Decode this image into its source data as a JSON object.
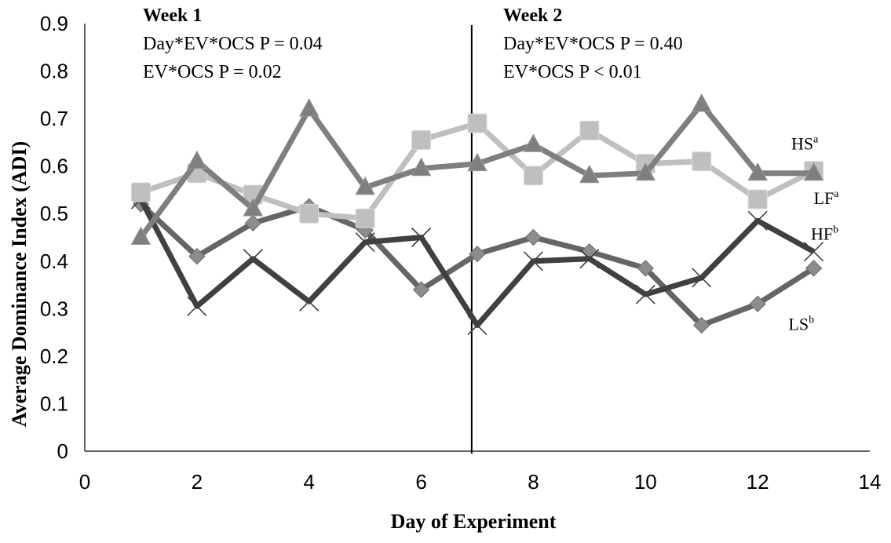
{
  "chart_data": {
    "type": "line",
    "title": "",
    "xlabel": "Day of Experiment",
    "ylabel": "Average Dominance Index (ADI)",
    "xlim": [
      0,
      14
    ],
    "ylim": [
      0,
      0.9
    ],
    "xticks": [
      "0",
      "2",
      "4",
      "6",
      "8",
      "10",
      "12",
      "14"
    ],
    "yticks": [
      "0",
      "0.1",
      "0.2",
      "0.3",
      "0.4",
      "0.5",
      "0.6",
      "0.7",
      "0.8",
      "0.9"
    ],
    "grid": false,
    "divider_x": 6.9,
    "annotations": {
      "week1": {
        "title": "Week 1",
        "line1": "Day*EV*OCS P = 0.04",
        "line2": "EV*OCS P = 0.02"
      },
      "week2": {
        "title": "Week 2",
        "line1": "Day*EV*OCS P = 0.40",
        "line2": "EV*OCS P < 0.01"
      }
    },
    "series": [
      {
        "name": "HS",
        "sup": "a",
        "marker": "triangle",
        "color": "#7f7f7f",
        "label_at": [
          12.6,
          0.635
        ],
        "x": [
          1,
          2,
          3,
          4,
          5,
          6,
          7,
          8,
          9,
          10,
          11,
          12,
          13
        ],
        "y": [
          0.45,
          0.61,
          0.51,
          0.72,
          0.555,
          0.595,
          0.605,
          0.645,
          0.58,
          0.585,
          0.73,
          0.585,
          0.585
        ]
      },
      {
        "name": "LF",
        "sup": "a",
        "marker": "square",
        "color": "#bfbfbf",
        "label_at": [
          13.0,
          0.52
        ],
        "x": [
          1,
          2,
          3,
          4,
          5,
          6,
          7,
          8,
          9,
          10,
          11,
          12,
          13
        ],
        "y": [
          0.545,
          0.585,
          0.54,
          0.5,
          0.49,
          0.655,
          0.69,
          0.58,
          0.675,
          0.605,
          0.61,
          0.53,
          0.59
        ]
      },
      {
        "name": "HF",
        "sup": "b",
        "marker": "x",
        "color": "#404040",
        "label_at": [
          12.95,
          0.445
        ],
        "x": [
          1,
          2,
          3,
          4,
          5,
          6,
          7,
          8,
          9,
          10,
          11,
          12,
          13
        ],
        "y": [
          0.53,
          0.305,
          0.405,
          0.315,
          0.44,
          0.45,
          0.265,
          0.4,
          0.405,
          0.33,
          0.365,
          0.485,
          0.42
        ]
      },
      {
        "name": "LS",
        "sup": "b",
        "marker": "diamond",
        "color": "#656565",
        "label_at": [
          12.55,
          0.255
        ],
        "x": [
          1,
          2,
          3,
          4,
          5,
          6,
          7,
          8,
          9,
          10,
          11,
          12,
          13
        ],
        "y": [
          0.52,
          0.41,
          0.48,
          0.515,
          0.465,
          0.34,
          0.415,
          0.45,
          0.42,
          0.385,
          0.265,
          0.31,
          0.385
        ]
      }
    ]
  }
}
